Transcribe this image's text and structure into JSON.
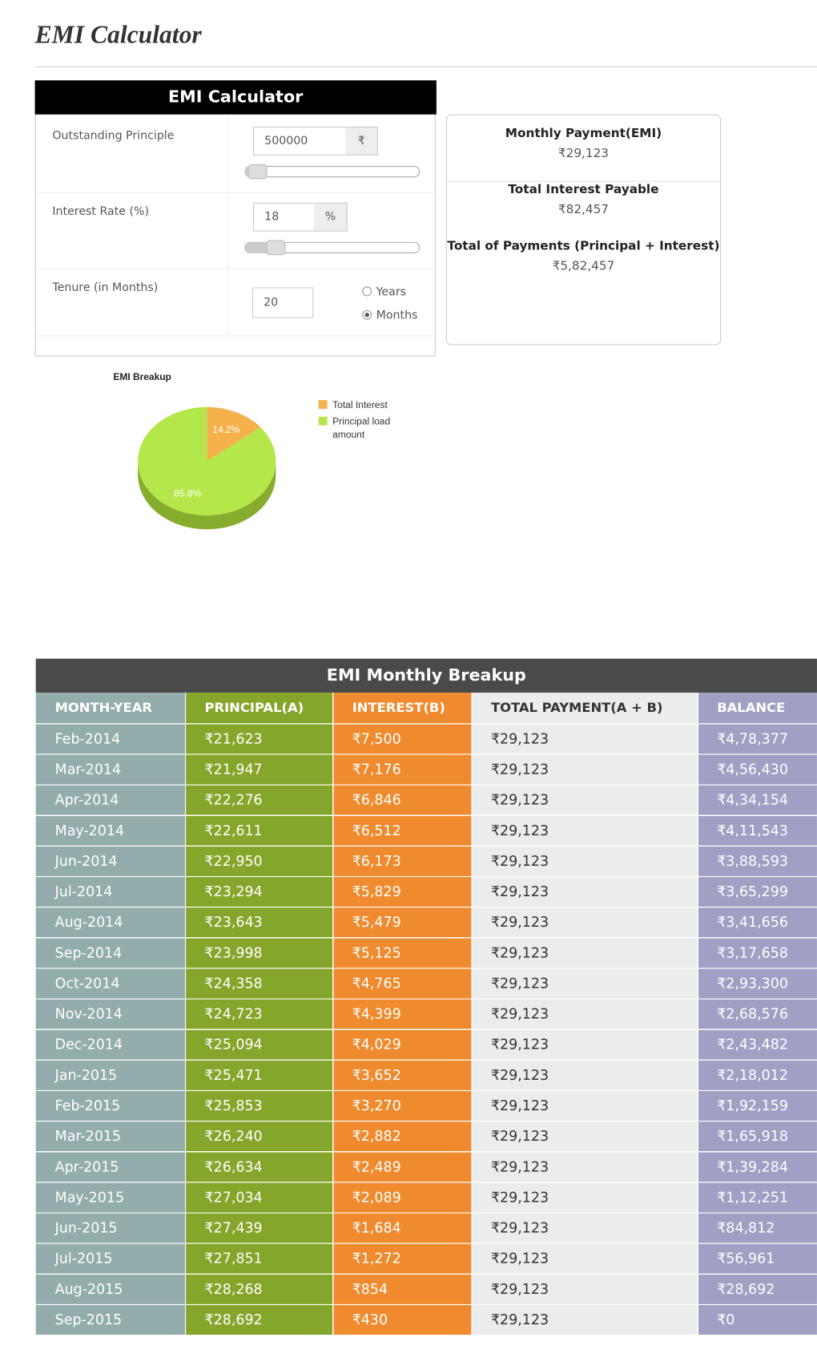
{
  "header": {
    "title": "EMI Calculator"
  },
  "calculator": {
    "title": "EMI Calculator",
    "fields": [
      {
        "label": "Outstanding Principle",
        "value": "500000",
        "unit": "₹"
      },
      {
        "label": "Interest Rate (%)",
        "value": "18",
        "unit": "%"
      },
      {
        "label": "Tenure (in Months)",
        "value": "20",
        "options": [
          "Years",
          "Months"
        ]
      }
    ]
  },
  "summary": [
    {
      "label": "Monthly Payment(EMI)",
      "value": "₹29,123"
    },
    {
      "label": "Total Interest Payable",
      "value": "₹82,457"
    },
    {
      "label": "Total of Payments (Principal + Interest)",
      "value": "₹5,82,457"
    }
  ],
  "chart_data": {
    "type": "pie",
    "title": "EMI Breakup",
    "categories": [
      "Total Interest",
      "Principal load amount"
    ],
    "values": [
      14.2,
      85.8
    ],
    "value_labels": [
      "14.2%",
      "85.8%"
    ],
    "colors": [
      "#f5b24c",
      "#b4e84a"
    ]
  },
  "table": {
    "title": "EMI Monthly Breakup",
    "columns": [
      "MONTH-YEAR",
      "PRINCIPAL(A)",
      "INTEREST(B)",
      "TOTAL PAYMENT(A + B)",
      "BALANCE"
    ],
    "rows": [
      [
        "Feb-2014",
        "₹21,623",
        "₹7,500",
        "₹29,123",
        "₹4,78,377"
      ],
      [
        "Mar-2014",
        "₹21,947",
        "₹7,176",
        "₹29,123",
        "₹4,56,430"
      ],
      [
        "Apr-2014",
        "₹22,276",
        "₹6,846",
        "₹29,123",
        "₹4,34,154"
      ],
      [
        "May-2014",
        "₹22,611",
        "₹6,512",
        "₹29,123",
        "₹4,11,543"
      ],
      [
        "Jun-2014",
        "₹22,950",
        "₹6,173",
        "₹29,123",
        "₹3,88,593"
      ],
      [
        "Jul-2014",
        "₹23,294",
        "₹5,829",
        "₹29,123",
        "₹3,65,299"
      ],
      [
        "Aug-2014",
        "₹23,643",
        "₹5,479",
        "₹29,123",
        "₹3,41,656"
      ],
      [
        "Sep-2014",
        "₹23,998",
        "₹5,125",
        "₹29,123",
        "₹3,17,658"
      ],
      [
        "Oct-2014",
        "₹24,358",
        "₹4,765",
        "₹29,123",
        "₹2,93,300"
      ],
      [
        "Nov-2014",
        "₹24,723",
        "₹4,399",
        "₹29,123",
        "₹2,68,576"
      ],
      [
        "Dec-2014",
        "₹25,094",
        "₹4,029",
        "₹29,123",
        "₹2,43,482"
      ],
      [
        "Jan-2015",
        "₹25,471",
        "₹3,652",
        "₹29,123",
        "₹2,18,012"
      ],
      [
        "Feb-2015",
        "₹25,853",
        "₹3,270",
        "₹29,123",
        "₹1,92,159"
      ],
      [
        "Mar-2015",
        "₹26,240",
        "₹2,882",
        "₹29,123",
        "₹1,65,918"
      ],
      [
        "Apr-2015",
        "₹26,634",
        "₹2,489",
        "₹29,123",
        "₹1,39,284"
      ],
      [
        "May-2015",
        "₹27,034",
        "₹2,089",
        "₹29,123",
        "₹1,12,251"
      ],
      [
        "Jun-2015",
        "₹27,439",
        "₹1,684",
        "₹29,123",
        "₹84,812"
      ],
      [
        "Jul-2015",
        "₹27,851",
        "₹1,272",
        "₹29,123",
        "₹56,961"
      ],
      [
        "Aug-2015",
        "₹28,268",
        "₹854",
        "₹29,123",
        "₹28,692"
      ],
      [
        "Sep-2015",
        "₹28,692",
        "₹430",
        "₹29,123",
        "₹0"
      ]
    ]
  }
}
